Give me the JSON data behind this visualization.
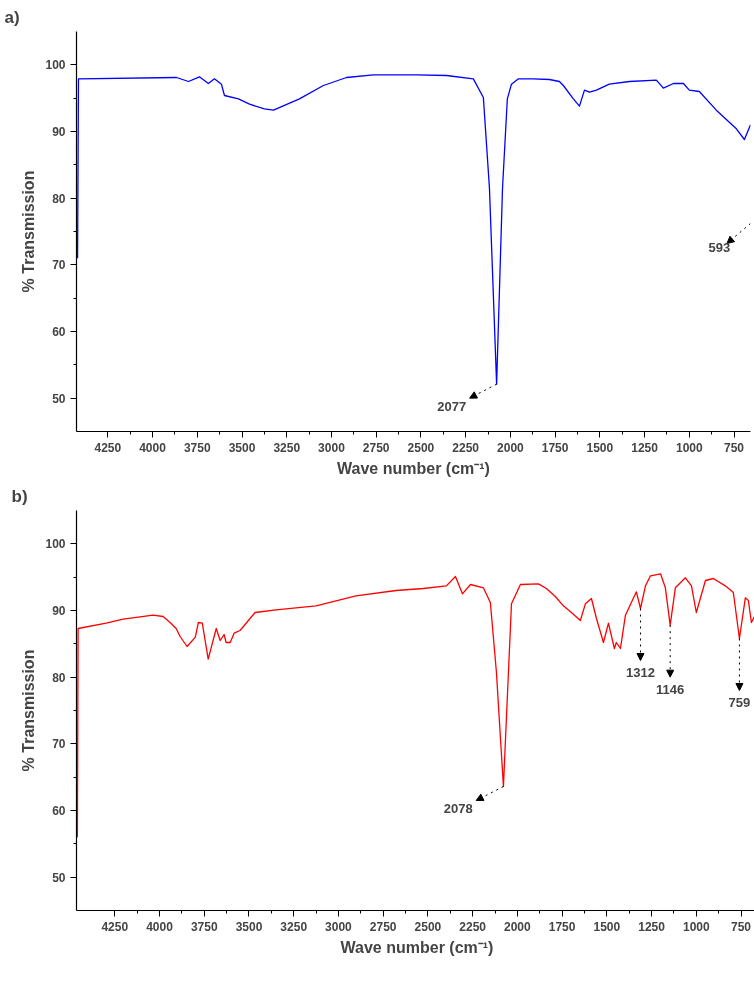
{
  "chart_data": [
    {
      "type": "line",
      "title": "a)",
      "xlabel": "Wave number (cm⁻¹)",
      "ylabel": "% Transmission",
      "xlim": [
        4425,
        658
      ],
      "ylim": [
        45,
        105
      ],
      "xticks": [
        4250,
        4000,
        3750,
        3500,
        3250,
        3000,
        2750,
        2500,
        2250,
        2000,
        1750,
        1500,
        1250,
        1000,
        750
      ],
      "yticks": [
        50,
        60,
        70,
        80,
        90,
        100
      ],
      "series": [
        {
          "color": "#0000ff",
          "x": [
            4419,
            4414,
            3866,
            3799,
            3738,
            3688,
            3654,
            3615,
            3598,
            3520,
            3458,
            3375,
            3324,
            3179,
            3045,
            2916,
            2765,
            2525,
            2357,
            2207,
            2151,
            2117,
            2077,
            2044,
            2017,
            1994,
            1955,
            1871,
            1782,
            1726,
            1704,
            1648,
            1614,
            1586,
            1558,
            1519,
            1447,
            1335,
            1184,
            1145,
            1089,
            1033,
            1000,
            944,
            849,
            737,
            692,
            658
          ],
          "values": [
            71,
            97.9,
            98.1,
            97.5,
            98.2,
            97.2,
            97.9,
            97.1,
            95.4,
            94.9,
            94.1,
            93.4,
            93.2,
            94.9,
            96.9,
            98.1,
            98.5,
            98.5,
            98.4,
            97.9,
            95.1,
            81.5,
            52.1,
            81.5,
            94.9,
            97.1,
            97.9,
            97.9,
            97.8,
            97.5,
            96.9,
            94.9,
            93.8,
            96.2,
            95.9,
            96.2,
            97.1,
            97.5,
            97.7,
            96.5,
            97.2,
            97.2,
            96.2,
            96.0,
            93.2,
            90.4,
            88.8,
            91.0
          ]
        }
      ],
      "annotations": [
        {
          "text": "2077",
          "x": 2077,
          "y": 52.1
        },
        "593"
      ]
    },
    {
      "type": "line",
      "title": "b)",
      "xlabel": "Wave number (cm⁻¹)",
      "ylabel": "% Transmission",
      "xlim": [
        4464,
        658
      ],
      "ylim": [
        45,
        105
      ],
      "xticks": [
        4250,
        4000,
        3750,
        3500,
        3250,
        3000,
        2750,
        2500,
        2250,
        2000,
        1750,
        1500,
        1250,
        1000,
        750
      ],
      "yticks": [
        50,
        60,
        70,
        80,
        90,
        100
      ],
      "series": [
        {
          "color": "#ff0000",
          "x": [
            4459,
            4455,
            4298,
            4203,
            4036,
            3980,
            3941,
            3907,
            3885,
            3846,
            3800,
            3783,
            3761,
            3728,
            3683,
            3661,
            3639,
            3628,
            3605,
            3583,
            3550,
            3466,
            3349,
            3125,
            2902,
            2678,
            2526,
            2397,
            2346,
            2307,
            2262,
            2190,
            2151,
            2117,
            2078,
            2050,
            2033,
            1983,
            1882,
            1838,
            1788,
            1743,
            1698,
            1648,
            1620,
            1586,
            1558,
            1519,
            1491,
            1458,
            1447,
            1424,
            1396,
            1335,
            1312,
            1284,
            1256,
            1200,
            1173,
            1146,
            1117,
            1061,
            1027,
            1000,
            949,
            905,
            838,
            793,
            759,
            726,
            709,
            692,
            658
          ],
          "values": [
            56,
            87.3,
            88.1,
            88.7,
            89.3,
            89.1,
            88.2,
            87.3,
            86.1,
            84.6,
            86.0,
            88.2,
            88.1,
            82.7,
            87.3,
            85.5,
            86.4,
            85.2,
            85.2,
            86.6,
            87.0,
            89.7,
            90.1,
            90.7,
            92.2,
            93.0,
            93.3,
            93.7,
            95.1,
            92.5,
            93.9,
            93.4,
            91.2,
            80.7,
            63.6,
            80.7,
            91.0,
            93.9,
            94.0,
            93.3,
            92.1,
            90.7,
            89.7,
            88.5,
            91.0,
            91.8,
            88.8,
            85.2,
            88.1,
            84.3,
            85.2,
            84.3,
            89.3,
            92.8,
            90.3,
            93.7,
            95.2,
            95.5,
            93.4,
            87.8,
            93.4,
            94.9,
            93.7,
            89.7,
            94.5,
            94.8,
            93.7,
            92.7,
            85.8,
            91.9,
            91.5,
            88.2,
            90.0
          ]
        }
      ],
      "annotations": [
        {
          "text": "2078",
          "x": 2078,
          "y": 63.6
        },
        {
          "text": "1312",
          "x": 1312,
          "y": 90.3
        },
        {
          "text": "1146",
          "x": 1146,
          "y": 87.8
        },
        {
          "text": "759",
          "x": 759,
          "y": 85.8
        }
      ]
    }
  ]
}
